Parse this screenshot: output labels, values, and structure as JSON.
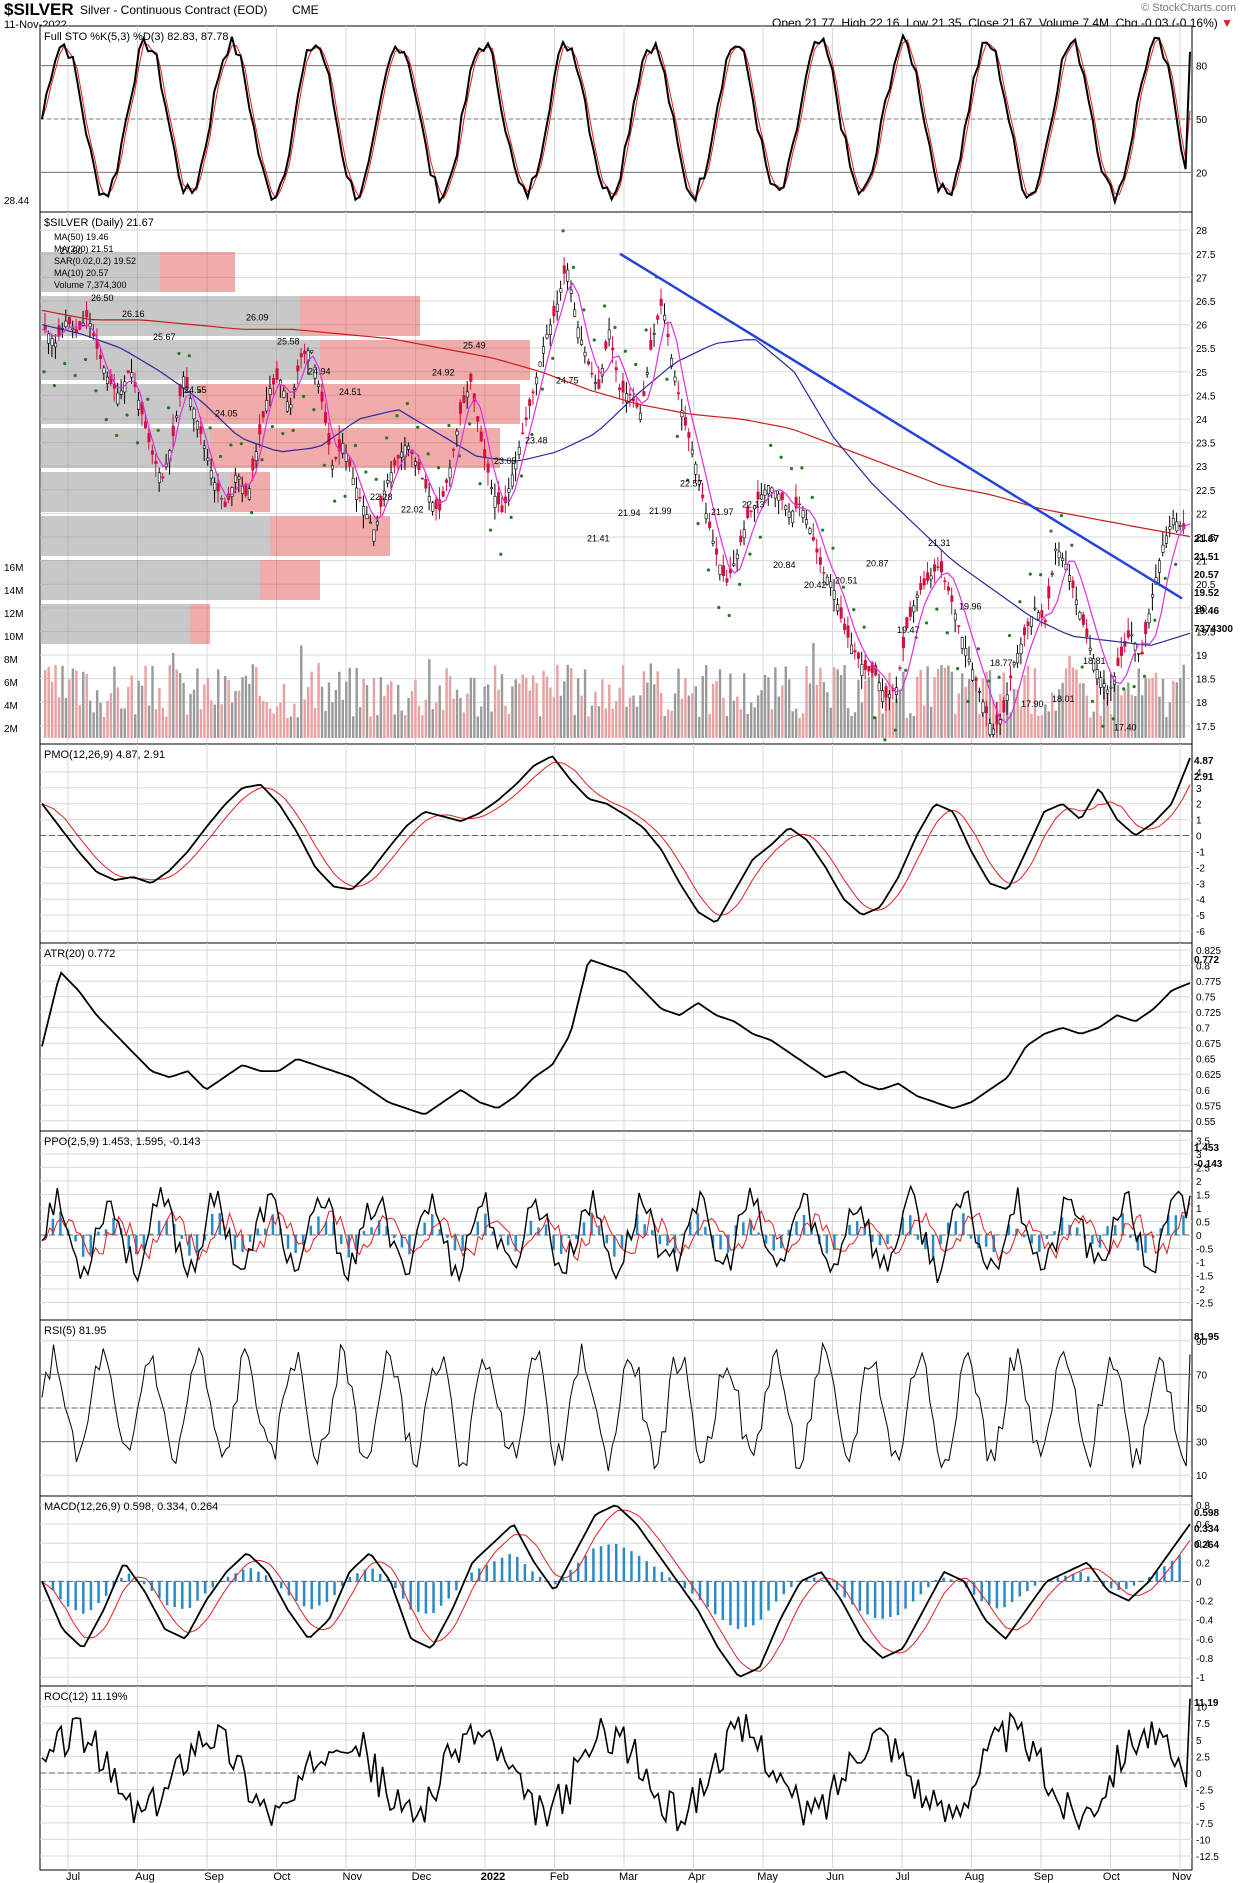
{
  "header": {
    "symbol": "$SILVER",
    "name": "Silver - Continuous Contract (EOD)",
    "exchange": "CME",
    "date": "11-Nov-2022",
    "watermark": "© StockCharts.com",
    "quote": {
      "open_label": "Open",
      "open": "21.77",
      "high_label": "High",
      "high": "22.16",
      "low_label": "Low",
      "low": "21.35",
      "close_label": "Close",
      "close": "21.67",
      "volume_label": "Volume",
      "volume": "7.4M",
      "chg_label": "Chg",
      "chg": "-0.03 (-0.16%)"
    }
  },
  "colors": {
    "price_line": "#000000",
    "signal_line": "#e02020",
    "ma50": "#2a2a9a",
    "ma200": "#c81e1e",
    "sar": "#1e7a1e",
    "ma10": "#e030e0",
    "trendline": "#2244dd",
    "volume_up": "#9a9a9a",
    "volume_down": "#e8a0a0",
    "histogram": "#2a8ac8",
    "rsi_overbought": "#5a8a5a",
    "rsi_oversold": "#8a5050",
    "grid": "#d8d8d8"
  },
  "chart_data": [
    {
      "type": "line",
      "panel": "stochastic",
      "title": "Full STO %K(5,3) %D(3) 82.83, 87.78",
      "series": [
        {
          "name": "%K",
          "last": 82.83
        },
        {
          "name": "%D",
          "last": 87.78
        }
      ],
      "ylim": [
        0,
        100
      ],
      "yticks": [
        20,
        50,
        80
      ],
      "left_value": "28.44",
      "right_labels": [
        "87.78",
        "82.83"
      ]
    },
    {
      "type": "candlestick",
      "panel": "price",
      "title": "$SILVER (Daily) 21.67",
      "legend": [
        "MA(50) 19.46",
        "MA(200) 21.51",
        "SAR(0.02,0.2) 19.52",
        "MA(10) 20.57",
        "Volume 7,374,300"
      ],
      "x": [
        "Jul",
        "Aug",
        "Sep",
        "Oct",
        "Nov",
        "Dec",
        "2022",
        "Feb",
        "Mar",
        "Apr",
        "May",
        "Jun",
        "Jul",
        "Aug",
        "Sep",
        "Oct",
        "Nov"
      ],
      "ylim": [
        17.2,
        28.3
      ],
      "yticks": [
        17.5,
        18.0,
        18.5,
        19.0,
        19.5,
        20.0,
        20.5,
        21.0,
        21.5,
        22.0,
        22.5,
        23.0,
        23.5,
        24.0,
        24.5,
        25.0,
        25.5,
        26.0,
        26.5,
        27.0,
        27.5,
        28.0
      ],
      "volume_ticks": [
        "2M",
        "4M",
        "6M",
        "8M",
        "10M",
        "12M",
        "14M",
        "16M"
      ],
      "price_path": [
        25.9,
        25.6,
        26.1,
        25.8,
        26.2,
        25.4,
        24.8,
        24.5,
        25.1,
        24.2,
        23.3,
        22.7,
        23.6,
        24.9,
        24.2,
        23.4,
        22.6,
        22.1,
        22.9,
        22.3,
        23.5,
        24.6,
        24.9,
        24.2,
        25.3,
        25.5,
        24.4,
        23.0,
        23.5,
        22.7,
        22.1,
        21.6,
        22.6,
        23.1,
        23.5,
        23.0,
        22.4,
        22.0,
        22.9,
        24.1,
        24.8,
        23.5,
        22.5,
        22.0,
        22.9,
        23.8,
        24.7,
        25.7,
        26.3,
        27.3,
        26.0,
        25.2,
        24.6,
        25.9,
        24.6,
        24.5,
        24.1,
        25.6,
        26.5,
        25.1,
        24.0,
        23.2,
        22.1,
        21.2,
        20.5,
        21.1,
        21.9,
        22.3,
        22.6,
        22.4,
        22.0,
        22.2,
        21.6,
        20.8,
        20.5,
        19.6,
        19.1,
        18.7,
        18.6,
        18.1,
        18.3,
        19.6,
        20.3,
        20.6,
        20.9,
        20.3,
        19.5,
        18.8,
        18.1,
        17.4,
        17.7,
        18.8,
        19.4,
        20.0,
        19.7,
        21.3,
        20.9,
        20.1,
        19.3,
        18.6,
        18.2,
        18.9,
        19.5,
        18.9,
        20.2,
        21.3,
        21.9,
        21.67
      ],
      "ma200_path": [
        26.3,
        26.1,
        26.1,
        26.0,
        25.9,
        25.9,
        25.8,
        25.7,
        25.5,
        25.3,
        25.0,
        24.6,
        24.3,
        24.1,
        24.0,
        23.8,
        23.4,
        23.0,
        22.6,
        22.4,
        22.1,
        21.9,
        21.7,
        21.51
      ],
      "ma50_path": [
        26.0,
        25.8,
        25.5,
        25.0,
        24.4,
        23.6,
        23.3,
        23.4,
        24.0,
        24.2,
        23.7,
        23.2,
        23.1,
        23.3,
        23.7,
        24.5,
        25.2,
        25.6,
        25.7,
        25.0,
        23.6,
        22.6,
        21.8,
        21.0,
        20.4,
        19.8,
        19.4,
        19.3,
        19.2,
        19.46
      ],
      "trendline": {
        "from": 27.5,
        "to": 20.2
      },
      "annotations": [
        "27.50",
        "26.50",
        "26.16",
        "25.67",
        "24.55",
        "24.05",
        "26.09",
        "25.58",
        "24.94",
        "24.51",
        "22.28",
        "22.02",
        "24.92",
        "25.49",
        "23.05",
        "23.48",
        "24.75",
        "21.41",
        "21.94",
        "21.99",
        "22.57",
        "21.97",
        "22.13",
        "20.84",
        "20.42",
        "20.51",
        "20.87",
        "19.47",
        "21.31",
        "19.96",
        "18.77",
        "17.90",
        "18.01",
        "18.81",
        "17.40"
      ],
      "right_labels": [
        "21.67",
        "21.51",
        "20.57",
        "19.52",
        "19.46",
        "7374300"
      ]
    },
    {
      "type": "line",
      "panel": "pmo",
      "title": "PMO(12,26,9) 4.87, 2.91",
      "series": [
        {
          "name": "PMO",
          "last": 4.87
        },
        {
          "name": "Signal",
          "last": 2.91
        }
      ],
      "ylim": [
        -6.5,
        5.5
      ],
      "yticks": [
        -6,
        -5,
        -4,
        -3,
        -2,
        -1,
        0,
        1,
        2,
        3,
        4
      ],
      "path": [
        2.0,
        0.5,
        -1.0,
        -2.3,
        -2.8,
        -2.6,
        -3.0,
        -2.2,
        -1.0,
        0.5,
        1.9,
        3.0,
        3.2,
        2.0,
        0.2,
        -2.0,
        -3.2,
        -3.4,
        -2.3,
        -0.8,
        0.6,
        1.5,
        1.2,
        0.9,
        1.4,
        2.2,
        3.2,
        4.4,
        5.0,
        3.5,
        2.3,
        2.0,
        1.3,
        0.5,
        -0.9,
        -3.0,
        -4.8,
        -5.5,
        -3.5,
        -1.5,
        -0.6,
        0.5,
        -0.3,
        -2.0,
        -4.0,
        -5.0,
        -4.5,
        -2.6,
        0.0,
        2.0,
        1.5,
        -1.0,
        -3.0,
        -3.4,
        -1.0,
        1.5,
        2.0,
        1.0,
        3.0,
        1.0,
        0.0,
        0.8,
        2.0,
        4.87
      ],
      "right_labels": [
        "4.87",
        "2.91"
      ]
    },
    {
      "type": "line",
      "panel": "atr",
      "title": "ATR(20) 0.772",
      "series": [
        {
          "name": "ATR",
          "last": 0.772
        }
      ],
      "ylim": [
        0.54,
        0.83
      ],
      "yticks": [
        0.55,
        0.575,
        0.6,
        0.625,
        0.65,
        0.675,
        0.7,
        0.725,
        0.75,
        0.775,
        0.8,
        0.825
      ],
      "path": [
        0.67,
        0.79,
        0.76,
        0.72,
        0.69,
        0.66,
        0.63,
        0.62,
        0.63,
        0.6,
        0.62,
        0.64,
        0.63,
        0.63,
        0.65,
        0.64,
        0.63,
        0.62,
        0.6,
        0.58,
        0.57,
        0.56,
        0.58,
        0.6,
        0.58,
        0.57,
        0.59,
        0.62,
        0.64,
        0.69,
        0.81,
        0.8,
        0.79,
        0.76,
        0.73,
        0.72,
        0.74,
        0.72,
        0.71,
        0.69,
        0.68,
        0.66,
        0.64,
        0.62,
        0.63,
        0.61,
        0.6,
        0.61,
        0.59,
        0.58,
        0.57,
        0.58,
        0.6,
        0.62,
        0.67,
        0.69,
        0.7,
        0.69,
        0.7,
        0.72,
        0.71,
        0.73,
        0.76,
        0.772
      ],
      "right_labels": [
        "0.772"
      ]
    },
    {
      "type": "line",
      "panel": "ppo",
      "title": "PPO(2,5,9) 1.453, 1.595, -0.143",
      "series": [
        {
          "name": "PPO",
          "last": 1.453
        },
        {
          "name": "Signal",
          "last": 1.595
        },
        {
          "name": "Histogram",
          "last": -0.143
        }
      ],
      "ylim": [
        -3.0,
        3.7
      ],
      "yticks": [
        -2.5,
        -2.0,
        -1.5,
        -1.0,
        -0.5,
        0.0,
        0.5,
        1.0,
        1.5,
        2.0,
        2.5,
        3.0,
        3.5
      ],
      "right_labels": [
        "1.453",
        "-0.143"
      ]
    },
    {
      "type": "line",
      "panel": "rsi",
      "title": "RSI(5) 81.95",
      "series": [
        {
          "name": "RSI",
          "last": 81.95
        }
      ],
      "ylim": [
        0,
        100
      ],
      "yticks": [
        10,
        30,
        50,
        70,
        90
      ],
      "right_labels": [
        "81.95"
      ]
    },
    {
      "type": "line",
      "panel": "macd",
      "title": "MACD(12,26,9) 0.598, 0.334, 0.264",
      "series": [
        {
          "name": "MACD",
          "last": 0.598
        },
        {
          "name": "Signal",
          "last": 0.334
        },
        {
          "name": "Histogram",
          "last": 0.264
        }
      ],
      "ylim": [
        -1.05,
        0.85
      ],
      "yticks": [
        -1.0,
        -0.8,
        -0.6,
        -0.4,
        -0.2,
        0.0,
        0.2,
        0.4,
        0.6,
        0.8
      ],
      "path": [
        0.0,
        -0.5,
        -0.7,
        -0.3,
        0.2,
        -0.1,
        -0.5,
        -0.6,
        -0.2,
        0.1,
        0.3,
        0.1,
        -0.3,
        -0.6,
        -0.4,
        0.1,
        0.3,
        0.0,
        -0.6,
        -0.7,
        -0.3,
        0.2,
        0.4,
        0.6,
        0.2,
        -0.1,
        0.3,
        0.7,
        0.8,
        0.6,
        0.3,
        0.0,
        -0.3,
        -0.7,
        -1.0,
        -0.9,
        -0.4,
        0.0,
        0.1,
        -0.2,
        -0.6,
        -0.8,
        -0.7,
        -0.3,
        0.1,
        0.0,
        -0.4,
        -0.6,
        -0.3,
        0.0,
        0.1,
        0.2,
        -0.1,
        -0.2,
        0.0,
        0.3,
        0.598
      ],
      "right_labels": [
        "0.598",
        "0.334",
        "0.264"
      ]
    },
    {
      "type": "line",
      "panel": "roc",
      "title": "ROC(12) 11.19%",
      "series": [
        {
          "name": "ROC",
          "last": 11.19
        }
      ],
      "ylim": [
        -14,
        12.5
      ],
      "yticks": [
        -12.5,
        -10.0,
        -7.5,
        -5.0,
        -2.5,
        0.0,
        2.5,
        5.0,
        7.5,
        10.0
      ],
      "right_labels": [
        "11.19"
      ]
    }
  ]
}
